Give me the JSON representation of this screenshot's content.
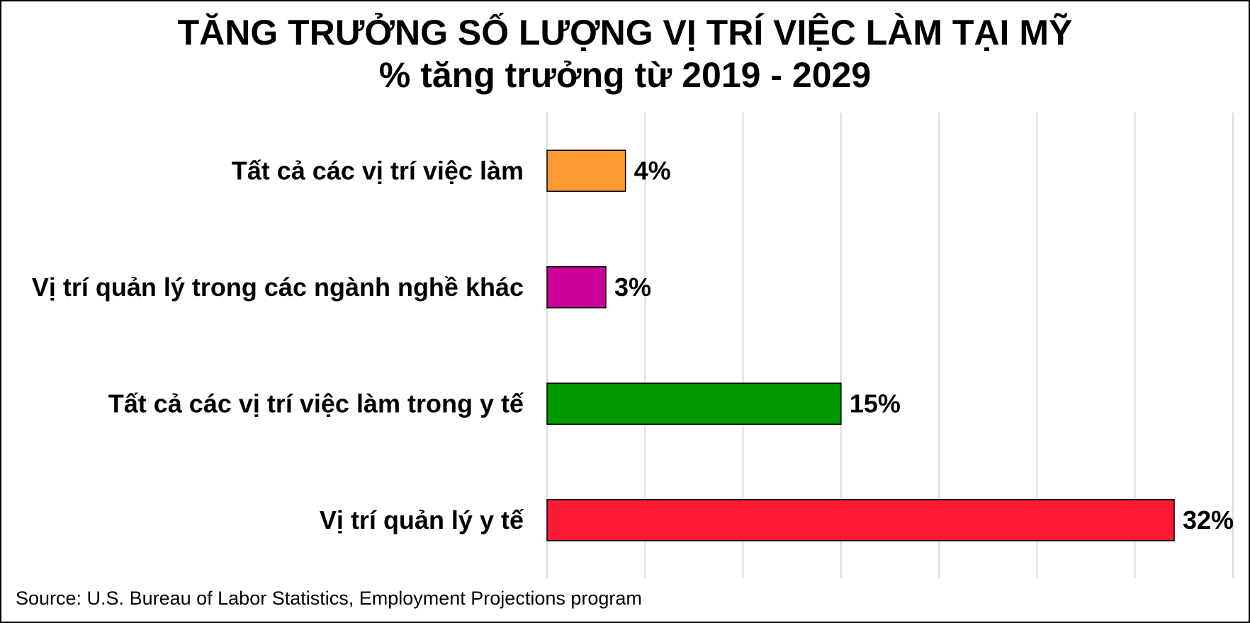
{
  "chart_data": {
    "type": "bar",
    "orientation": "horizontal",
    "title": "TĂNG TRƯỞNG SỐ LƯỢNG VỊ TRÍ VIỆC LÀM TẠI MỸ",
    "subtitle": "% tăng trưởng từ 2019 - 2029",
    "categories": [
      "Tất cả các vị trí việc làm",
      "Vị trí quản lý trong các ngành nghề khác",
      "Tất cả các vị trí việc làm trong y tế",
      "Vị trí quản lý y tế"
    ],
    "values": [
      4,
      3,
      15,
      32
    ],
    "data_labels": [
      "4%",
      "3%",
      "15%",
      "32%"
    ],
    "colors": [
      "#FF9933",
      "#CC0099",
      "#009900",
      "#FF1A33"
    ],
    "xlim": [
      0,
      35
    ],
    "grid": "vertical",
    "grid_color": "#d0d0d0",
    "legend": "none"
  },
  "source": "Source: U.S. Bureau of Labor Statistics, Employment Projections program"
}
